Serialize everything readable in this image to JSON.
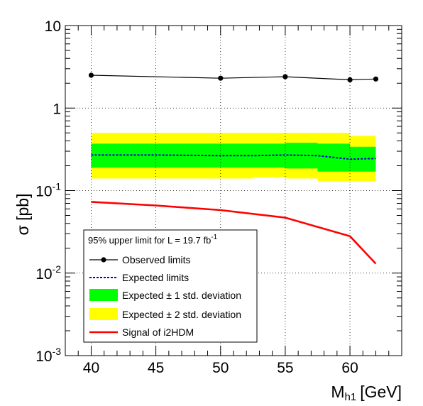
{
  "chart_data": {
    "type": "line",
    "xlabel": "M",
    "xlabel_sub": "h1",
    "xlabel_unit": "[GeV]",
    "ylabel": "σ [pb]",
    "xlim": [
      38,
      64
    ],
    "ylim": [
      0.001,
      10
    ],
    "yscale": "log",
    "grid": true,
    "x_ticks": [
      40,
      45,
      50,
      55,
      60
    ],
    "y_ticks": [
      {
        "value": 10,
        "base": "10",
        "exp": ""
      },
      {
        "value": 1,
        "base": "1",
        "exp": ""
      },
      {
        "value": 0.1,
        "base": "10",
        "exp": "-1"
      },
      {
        "value": 0.01,
        "base": "10",
        "exp": "-2"
      },
      {
        "value": 0.001,
        "base": "10",
        "exp": "-3"
      }
    ],
    "legend": {
      "placement": "bottom-left",
      "header_prefix": "95% upper limit for L = 19.7 fb",
      "header_exp": "-1",
      "entries": [
        {
          "key": "observed",
          "label": "Observed limits"
        },
        {
          "key": "expected",
          "label": "Expected limits"
        },
        {
          "key": "band1",
          "label": "Expected ± 1 std. deviation"
        },
        {
          "key": "band2",
          "label": "Expected ± 2 std. deviation"
        },
        {
          "key": "signal",
          "label": "Signal of i2HDM"
        }
      ]
    },
    "colors": {
      "observed": "#000000",
      "expected": "#0000cc",
      "band1": "#00ff00",
      "band2": "#ffff00",
      "signal": "#ff0000"
    },
    "series": [
      {
        "key": "observed",
        "name": "Observed limits",
        "x": [
          40,
          50,
          55,
          60,
          62
        ],
        "y": [
          2.5,
          2.3,
          2.4,
          2.2,
          2.25
        ]
      },
      {
        "key": "expected",
        "name": "Expected limits",
        "x": [
          40,
          45,
          50,
          52.5,
          55,
          57.5,
          60,
          62
        ],
        "y": [
          0.27,
          0.27,
          0.265,
          0.265,
          0.27,
          0.265,
          0.24,
          0.245
        ]
      },
      {
        "key": "band1",
        "name": "Expected ± 1 std. deviation",
        "x": [
          40,
          45,
          50,
          52.5,
          55,
          57.5,
          60,
          62
        ],
        "y_low": [
          0.19,
          0.19,
          0.19,
          0.19,
          0.19,
          0.185,
          0.17,
          0.17
        ],
        "y_high": [
          0.37,
          0.37,
          0.37,
          0.37,
          0.38,
          0.37,
          0.34,
          0.34
        ]
      },
      {
        "key": "band2",
        "name": "Expected ± 2 std. deviation",
        "x": [
          40,
          45,
          50,
          52.5,
          55,
          57.5,
          60,
          62
        ],
        "y_low": [
          0.14,
          0.14,
          0.14,
          0.14,
          0.145,
          0.14,
          0.13,
          0.13
        ],
        "y_high": [
          0.5,
          0.5,
          0.5,
          0.5,
          0.5,
          0.5,
          0.46,
          0.46
        ]
      },
      {
        "key": "signal",
        "name": "Signal of i2HDM",
        "x": [
          40,
          45,
          50,
          55,
          60,
          62
        ],
        "y": [
          0.073,
          0.066,
          0.058,
          0.047,
          0.028,
          0.013
        ]
      }
    ]
  }
}
